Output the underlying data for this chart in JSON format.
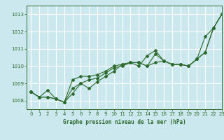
{
  "title": "Graphe pression niveau de la mer (hPa)",
  "bg_color": "#cce8ef",
  "grid_color": "#ffffff",
  "line_color": "#2d6a2d",
  "xlim": [
    -0.5,
    23
  ],
  "ylim": [
    1007.5,
    1013.5
  ],
  "yticks": [
    1008,
    1009,
    1010,
    1011,
    1012,
    1013
  ],
  "xticks": [
    0,
    1,
    2,
    3,
    4,
    5,
    6,
    7,
    8,
    9,
    10,
    11,
    12,
    13,
    14,
    15,
    16,
    17,
    18,
    19,
    20,
    21,
    22,
    23
  ],
  "series": [
    [
      1008.5,
      1008.2,
      1008.2,
      1008.1,
      1007.9,
      1008.7,
      1009.0,
      1009.2,
      1009.3,
      1009.6,
      1009.9,
      1010.0,
      1010.2,
      1010.2,
      1010.0,
      1010.2,
      1010.3,
      1010.1,
      1010.1,
      1010.0,
      1010.4,
      1010.8,
      1012.2,
      1013.0
    ],
    [
      1008.5,
      1008.2,
      1008.2,
      1008.1,
      1007.9,
      1009.2,
      1009.4,
      1009.4,
      1009.5,
      1009.7,
      1010.0,
      1010.1,
      1010.2,
      1010.2,
      1010.0,
      1010.7,
      1010.3,
      1010.1,
      1010.1,
      1010.0,
      1010.4,
      1011.7,
      1012.2,
      1013.0
    ],
    [
      1008.5,
      1008.2,
      1008.6,
      1008.1,
      1007.9,
      1008.4,
      1009.0,
      1008.7,
      1009.1,
      1009.4,
      1009.7,
      1010.1,
      1010.2,
      1010.0,
      1010.6,
      1010.9,
      1010.3,
      1010.1,
      1010.1,
      1010.0,
      1010.4,
      1010.8,
      1012.2,
      1013.0
    ]
  ]
}
